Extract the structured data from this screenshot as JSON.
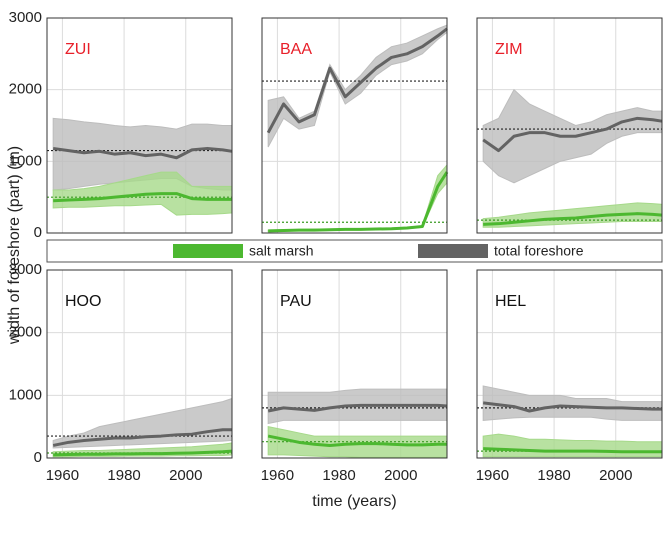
{
  "chart_data": [
    {
      "type": "line",
      "title": "ZUI",
      "title_color": "#e8202a",
      "ylabel": "width of foreshore (part) (m)",
      "x": [
        1957,
        1962,
        1967,
        1972,
        1977,
        1982,
        1987,
        1992,
        1997,
        2002,
        2007,
        2012,
        2015
      ],
      "xlim": [
        1955,
        2015
      ],
      "xticks": [
        1960,
        1980,
        2000
      ],
      "ylim": [
        0,
        3000
      ],
      "yticks": [
        0,
        1000,
        2000,
        3000
      ],
      "grid": true,
      "series": [
        {
          "name": "total foreshore",
          "color": "#636363",
          "band_color": "#bdbdbd",
          "reference_color": "#222222",
          "reference": 1150,
          "values": [
            1180,
            1150,
            1120,
            1140,
            1100,
            1120,
            1080,
            1100,
            1050,
            1160,
            1180,
            1160,
            1140
          ],
          "band_low": [
            600,
            620,
            650,
            680,
            700,
            720,
            740,
            760,
            760,
            650,
            620,
            600,
            600
          ],
          "band_high": [
            1600,
            1580,
            1550,
            1530,
            1500,
            1480,
            1500,
            1480,
            1450,
            1520,
            1520,
            1500,
            1500
          ]
        },
        {
          "name": "salt marsh",
          "color": "#4cb830",
          "band_color": "#a6d98a",
          "reference_color": "#3a9a22",
          "reference": 500,
          "values": [
            450,
            460,
            470,
            480,
            500,
            520,
            540,
            550,
            550,
            480,
            470,
            470,
            470
          ],
          "band_low": [
            350,
            360,
            360,
            370,
            380,
            380,
            390,
            400,
            250,
            260,
            260,
            270,
            280
          ],
          "band_high": [
            600,
            600,
            620,
            650,
            700,
            750,
            800,
            850,
            850,
            650,
            650,
            650,
            650
          ]
        }
      ]
    },
    {
      "type": "line",
      "title": "BAA",
      "title_color": "#e8202a",
      "x": [
        1957,
        1962,
        1967,
        1972,
        1977,
        1982,
        1987,
        1992,
        1997,
        2002,
        2007,
        2012,
        2015
      ],
      "xlim": [
        1955,
        2015
      ],
      "xticks": [
        1960,
        1980,
        2000
      ],
      "ylim": [
        0,
        3000
      ],
      "yticks": [
        0,
        1000,
        2000,
        3000
      ],
      "grid": true,
      "series": [
        {
          "color": "#636363",
          "band_color": "#bdbdbd",
          "reference_color": "#222222",
          "reference": 2120,
          "values": [
            1400,
            1800,
            1550,
            1650,
            2300,
            1900,
            2100,
            2300,
            2450,
            2500,
            2600,
            2750,
            2850
          ],
          "band_low": [
            1200,
            1600,
            1450,
            1500,
            2250,
            1800,
            1950,
            2200,
            2350,
            2400,
            2500,
            2700,
            2800
          ],
          "band_high": [
            1850,
            1900,
            1600,
            1700,
            2350,
            2000,
            2200,
            2450,
            2600,
            2650,
            2750,
            2850,
            2900
          ]
        },
        {
          "color": "#4cb830",
          "band_color": "#a6d98a",
          "reference_color": "#3a9a22",
          "reference": 150,
          "values": [
            30,
            35,
            40,
            40,
            45,
            50,
            50,
            55,
            60,
            70,
            90,
            650,
            850
          ],
          "band_low": [
            20,
            25,
            30,
            30,
            35,
            40,
            40,
            45,
            50,
            60,
            80,
            550,
            700
          ],
          "band_high": [
            40,
            45,
            50,
            55,
            55,
            60,
            60,
            65,
            70,
            80,
            100,
            800,
            950
          ]
        }
      ]
    },
    {
      "type": "line",
      "title": "ZIM",
      "title_color": "#e8202a",
      "x": [
        1957,
        1962,
        1967,
        1972,
        1977,
        1982,
        1987,
        1992,
        1997,
        2002,
        2007,
        2012,
        2015
      ],
      "xlim": [
        1955,
        2015
      ],
      "xticks": [
        1960,
        1980,
        2000
      ],
      "ylim": [
        0,
        3000
      ],
      "yticks": [
        0,
        1000,
        2000,
        3000
      ],
      "grid": true,
      "series": [
        {
          "color": "#636363",
          "band_color": "#bdbdbd",
          "reference_color": "#222222",
          "reference": 1450,
          "values": [
            1300,
            1150,
            1350,
            1400,
            1400,
            1350,
            1350,
            1400,
            1450,
            1550,
            1600,
            1580,
            1560
          ],
          "band_low": [
            1000,
            800,
            700,
            800,
            900,
            1000,
            1050,
            1100,
            1250,
            1350,
            1400,
            1400,
            1400
          ],
          "band_high": [
            1500,
            1600,
            2000,
            1800,
            1700,
            1600,
            1500,
            1550,
            1650,
            1700,
            1750,
            1700,
            1700
          ]
        },
        {
          "color": "#4cb830",
          "band_color": "#a6d98a",
          "reference_color": "#3a9a22",
          "reference": 180,
          "values": [
            120,
            130,
            150,
            170,
            190,
            200,
            210,
            230,
            250,
            260,
            270,
            260,
            250
          ],
          "band_low": [
            80,
            80,
            90,
            100,
            110,
            120,
            130,
            140,
            150,
            160,
            160,
            160,
            160
          ],
          "band_high": [
            200,
            220,
            250,
            280,
            300,
            320,
            340,
            360,
            380,
            400,
            420,
            410,
            400
          ]
        }
      ]
    },
    {
      "type": "line",
      "title": "HOO",
      "title_color": "#111111",
      "x": [
        1957,
        1962,
        1967,
        1972,
        1977,
        1982,
        1987,
        1992,
        1997,
        2002,
        2007,
        2012,
        2015
      ],
      "xlim": [
        1955,
        2015
      ],
      "xticks": [
        1960,
        1980,
        2000
      ],
      "ylim": [
        0,
        3000
      ],
      "yticks": [
        0,
        1000,
        2000,
        3000
      ],
      "grid": true,
      "series": [
        {
          "color": "#636363",
          "band_color": "#bdbdbd",
          "reference_color": "#222222",
          "reference": 350,
          "values": [
            200,
            250,
            280,
            300,
            320,
            320,
            340,
            350,
            370,
            380,
            420,
            450,
            450
          ],
          "band_low": [
            160,
            170,
            180,
            190,
            200,
            210,
            220,
            230,
            240,
            250,
            260,
            270,
            280
          ],
          "band_high": [
            280,
            350,
            400,
            500,
            550,
            600,
            650,
            700,
            750,
            800,
            850,
            900,
            950
          ]
        },
        {
          "color": "#4cb830",
          "band_color": "#a6d98a",
          "reference_color": "#3a9a22",
          "reference": 80,
          "values": [
            50,
            55,
            60,
            60,
            65,
            65,
            70,
            70,
            75,
            80,
            90,
            100,
            110
          ],
          "band_low": [
            20,
            20,
            25,
            25,
            25,
            30,
            30,
            30,
            35,
            35,
            40,
            40,
            50
          ],
          "band_high": [
            100,
            110,
            120,
            120,
            130,
            140,
            150,
            160,
            170,
            180,
            200,
            220,
            240
          ]
        }
      ]
    },
    {
      "type": "line",
      "title": "PAU",
      "title_color": "#111111",
      "xlabel": "time (years)",
      "x": [
        1957,
        1962,
        1967,
        1972,
        1977,
        1982,
        1987,
        1992,
        1997,
        2002,
        2007,
        2012,
        2015
      ],
      "xlim": [
        1955,
        2015
      ],
      "xticks": [
        1960,
        1980,
        2000
      ],
      "ylim": [
        0,
        3000
      ],
      "yticks": [
        0,
        1000,
        2000,
        3000
      ],
      "grid": true,
      "series": [
        {
          "color": "#636363",
          "band_color": "#bdbdbd",
          "reference_color": "#222222",
          "reference": 800,
          "values": [
            750,
            800,
            780,
            760,
            800,
            830,
            840,
            840,
            840,
            840,
            840,
            840,
            830
          ],
          "band_low": [
            550,
            600,
            600,
            600,
            600,
            600,
            600,
            600,
            600,
            600,
            600,
            600,
            600
          ],
          "band_high": [
            1050,
            1050,
            1050,
            1050,
            1050,
            1080,
            1100,
            1100,
            1100,
            1100,
            1100,
            1100,
            1100
          ]
        },
        {
          "color": "#4cb830",
          "band_color": "#a6d98a",
          "reference_color": "#3a9a22",
          "reference": 260,
          "values": [
            350,
            300,
            250,
            220,
            200,
            220,
            230,
            230,
            220,
            210,
            210,
            220,
            220
          ],
          "band_low": [
            50,
            50,
            40,
            30,
            20,
            20,
            10,
            10,
            10,
            10,
            10,
            10,
            10
          ],
          "band_high": [
            500,
            450,
            400,
            350,
            350,
            350,
            350,
            350,
            350,
            350,
            350,
            350,
            350
          ]
        }
      ]
    },
    {
      "type": "line",
      "title": "HEL",
      "title_color": "#111111",
      "x": [
        1957,
        1962,
        1967,
        1972,
        1977,
        1982,
        1987,
        1992,
        1997,
        2002,
        2007,
        2012,
        2015
      ],
      "xlim": [
        1955,
        2015
      ],
      "xticks": [
        1960,
        1980,
        2000
      ],
      "ylim": [
        0,
        3000
      ],
      "yticks": [
        0,
        1000,
        2000,
        3000
      ],
      "grid": true,
      "series": [
        {
          "color": "#636363",
          "band_color": "#bdbdbd",
          "reference_color": "#222222",
          "reference": 800,
          "values": [
            880,
            850,
            820,
            750,
            800,
            830,
            820,
            810,
            800,
            800,
            790,
            780,
            780
          ],
          "band_low": [
            600,
            620,
            640,
            650,
            650,
            650,
            650,
            650,
            620,
            600,
            600,
            600,
            600
          ],
          "band_high": [
            1150,
            1100,
            1050,
            1000,
            1000,
            1000,
            950,
            950,
            950,
            900,
            900,
            900,
            900
          ]
        },
        {
          "color": "#4cb830",
          "band_color": "#a6d98a",
          "reference_color": "#3a9a22",
          "reference": 110,
          "values": [
            150,
            140,
            130,
            120,
            110,
            110,
            110,
            110,
            105,
            100,
            100,
            100,
            100
          ],
          "band_low": [
            20,
            20,
            20,
            20,
            20,
            20,
            20,
            20,
            20,
            20,
            20,
            20,
            20
          ],
          "band_high": [
            350,
            380,
            350,
            300,
            300,
            290,
            280,
            280,
            270,
            270,
            260,
            260,
            260
          ]
        }
      ]
    }
  ]
}
